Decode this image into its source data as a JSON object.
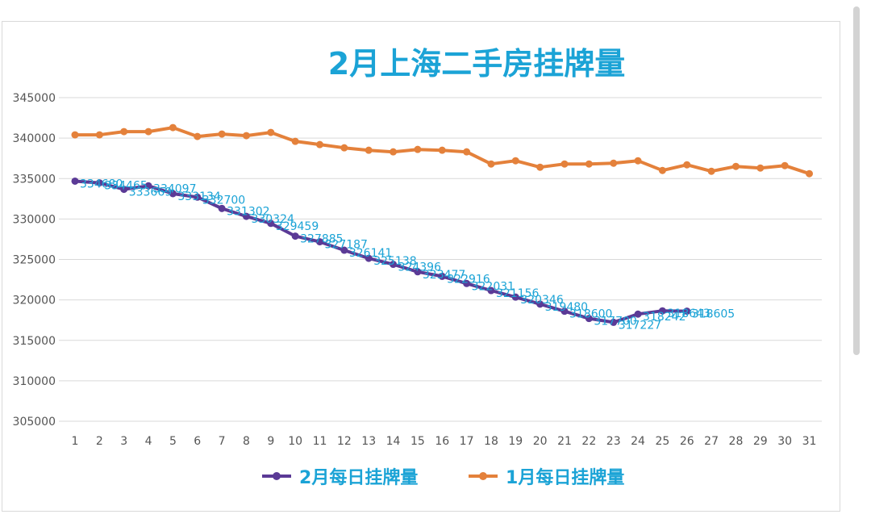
{
  "chart_data": {
    "type": "line",
    "title_num": "2",
    "title_rest": "月上海二手房挂牌量",
    "xlabel": "",
    "ylabel": "",
    "categories": [
      "1",
      "2",
      "3",
      "4",
      "5",
      "6",
      "7",
      "8",
      "9",
      "10",
      "11",
      "12",
      "13",
      "14",
      "15",
      "16",
      "17",
      "18",
      "19",
      "20",
      "21",
      "22",
      "23",
      "24",
      "25",
      "26",
      "27",
      "28",
      "29",
      "30",
      "31"
    ],
    "y_ticks": [
      "305000",
      "310000",
      "315000",
      "320000",
      "325000",
      "330000",
      "335000",
      "340000",
      "345000"
    ],
    "ylim": [
      305000,
      345000
    ],
    "grid": true,
    "legend_position": "bottom",
    "series": [
      {
        "name_num": "2",
        "name_rest": "月每日挂牌量",
        "color": "#5b3a96",
        "show_labels": true,
        "values": [
          334680,
          334465,
          333669,
          334097,
          333134,
          332700,
          331302,
          330324,
          329459,
          327885,
          327187,
          326141,
          325138,
          324396,
          323477,
          322916,
          322031,
          321156,
          320346,
          319480,
          318600,
          317700,
          317227,
          318242,
          318643,
          318605,
          null,
          null,
          null,
          null,
          null
        ]
      },
      {
        "name_num": "1",
        "name_rest": "月每日挂牌量",
        "color": "#e4813b",
        "show_labels": false,
        "values": [
          340400,
          340400,
          340800,
          340800,
          341300,
          340200,
          340500,
          340300,
          340700,
          339600,
          339200,
          338800,
          338500,
          338300,
          338600,
          338500,
          338300,
          336800,
          337200,
          336400,
          336800,
          336800,
          336900,
          337200,
          336000,
          336700,
          335900,
          336500,
          336300,
          336600,
          335600
        ]
      }
    ]
  },
  "colors": {
    "title": "#1ba3d6",
    "label": "#1ba3d6",
    "axis_text": "#555555",
    "grid": "#d9d9d9"
  }
}
